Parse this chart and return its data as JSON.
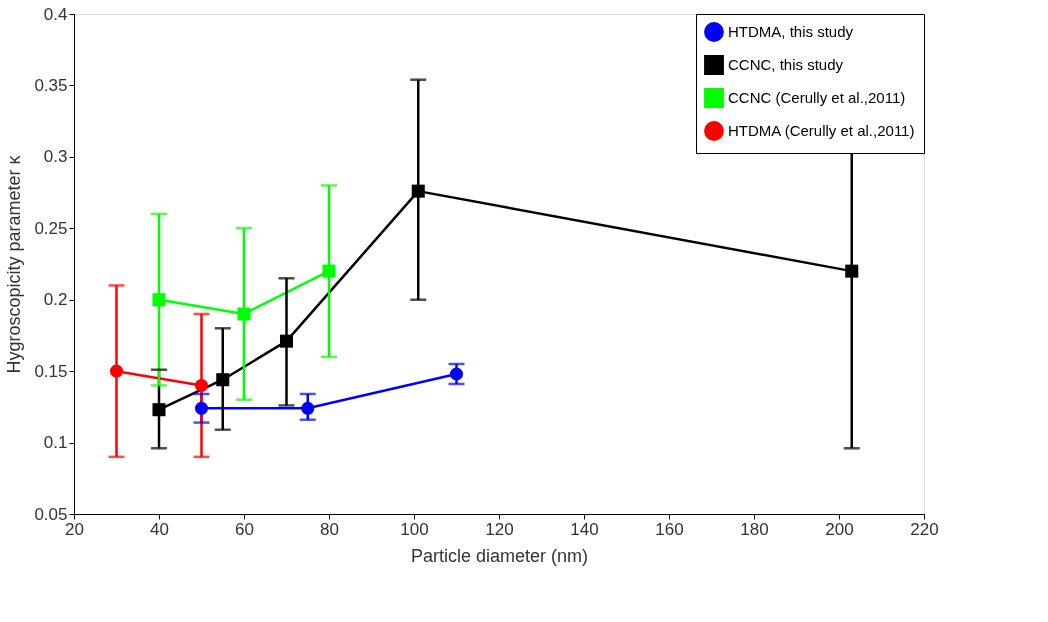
{
  "chart_data": {
    "type": "line",
    "xlabel": "Particle diameter (nm)",
    "ylabel": "Hygroscopicity parameter κ",
    "xlim": [
      20,
      220
    ],
    "xticks": [
      20,
      40,
      60,
      80,
      100,
      120,
      140,
      160,
      180,
      200,
      220
    ],
    "ylim": [
      0.05,
      0.4
    ],
    "yticks": [
      0.05,
      0.1,
      0.15,
      0.2,
      0.25,
      0.3,
      0.35,
      0.4
    ],
    "grid": false,
    "legend": "top right",
    "line_style": "solid",
    "series": [
      {
        "name": "HTDMA, this study",
        "color": "#0000ff",
        "marker": "circle",
        "x": [
          50,
          75,
          110
        ],
        "values": [
          0.124,
          0.124,
          0.148
        ],
        "errors": [
          [
            0.114,
            0.134
          ],
          [
            0.116,
            0.134
          ],
          [
            0.141,
            0.155
          ]
        ]
      },
      {
        "name": "CCNC, this study",
        "color": "#000000",
        "marker": "square",
        "x": [
          40,
          55,
          70,
          101,
          203
        ],
        "values": [
          0.123,
          0.144,
          0.171,
          0.276,
          0.22
        ],
        "errors": [
          [
            0.096,
            0.151
          ],
          [
            0.109,
            0.18
          ],
          [
            0.126,
            0.215
          ],
          [
            0.2,
            0.354
          ],
          [
            0.096,
            0.344
          ]
        ]
      },
      {
        "name": "CCNC (Cerully et al.,2011)",
        "color": "#00ff00",
        "marker": "square",
        "x": [
          40,
          60,
          80
        ],
        "values": [
          0.2,
          0.19,
          0.22
        ],
        "errors": [
          [
            0.14,
            0.26
          ],
          [
            0.13,
            0.25
          ],
          [
            0.16,
            0.28
          ]
        ]
      },
      {
        "name": "HTDMA (Cerully et al.,2011)",
        "color": "#ff0000",
        "marker": "circle",
        "x": [
          30,
          50
        ],
        "values": [
          0.15,
          0.14
        ],
        "errors": [
          [
            0.09,
            0.21
          ],
          [
            0.09,
            0.19
          ]
        ]
      }
    ]
  }
}
